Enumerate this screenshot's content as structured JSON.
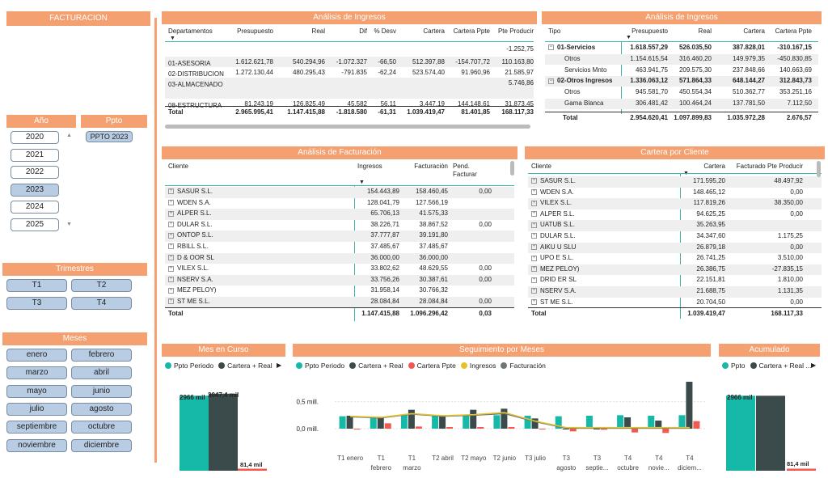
{
  "colors": {
    "accent": "#F4A070",
    "selected": "#b8cce4",
    "teal": "#16b8a8",
    "dark": "#3b4a4a",
    "red": "#f05a50",
    "yellow": "#e6c229",
    "gray": "#6e7676"
  },
  "sidebar": {
    "title": "FACTURACION",
    "year_title": "Año",
    "years": [
      {
        "label": "2020",
        "selected": false
      },
      {
        "label": "2021",
        "selected": false
      },
      {
        "label": "2022",
        "selected": false
      },
      {
        "label": "2023",
        "selected": true
      },
      {
        "label": "2024",
        "selected": false
      },
      {
        "label": "2025",
        "selected": false
      }
    ],
    "ppto_title": "Ppto",
    "ppto_option": "PPTO 2023",
    "trimestres_title": "Trimestres",
    "trimestres": [
      "T1",
      "T2",
      "T3",
      "T4"
    ],
    "meses_title": "Meses",
    "meses": [
      "enero",
      "febrero",
      "marzo",
      "abril",
      "mayo",
      "junio",
      "julio",
      "agosto",
      "septiembre",
      "octubre",
      "noviembre",
      "diciembre"
    ]
  },
  "ingresos_dep": {
    "title": "Análisis de Ingresos",
    "headers": [
      "Departamentos",
      "Presupuesto",
      "Real",
      "Dif",
      "% Desv",
      "Cartera",
      "Cartera Ppte",
      "Pte Producir"
    ],
    "rows": [
      [
        "",
        "",
        "",
        "",
        "",
        "",
        "",
        "-1.252,75"
      ],
      [
        "01-ASESORIA",
        "1.612.621,78",
        "540.294,96",
        "-1.072.327",
        "-66,50",
        "512.397,88",
        "-154.707,72",
        "110.163,80"
      ],
      [
        "02-DISTRIBUCION",
        "1.272.130,44",
        "480.295,43",
        "-791.835",
        "-62,24",
        "523.574,40",
        "91.960,96",
        "21.585,97"
      ],
      [
        "03-ALMACENADO",
        "",
        "",
        "",
        "",
        "",
        "",
        "5.746,86"
      ],
      [
        "08-ESTRUCTURA",
        "81.243,19",
        "126.825,49",
        "45.582",
        "56,11",
        "3.447,19",
        "144.148,61",
        "31.873,45"
      ]
    ],
    "total": [
      "Total",
      "2.965.995,41",
      "1.147.415,88",
      "-1.818.580",
      "-61,31",
      "1.039.419,47",
      "81.401,85",
      "168.117,33"
    ]
  },
  "ingresos_tipo": {
    "title": "Análisis de Ingresos",
    "headers": [
      "Tipo",
      "Presupuesto",
      "Real",
      "Cartera",
      "Cartera Ppte"
    ],
    "rows": [
      {
        "expand": "⊟",
        "label": "01-Servicios",
        "bold": true,
        "values": [
          "1.618.557,29",
          "526.035,50",
          "387.828,01",
          "-310.167,15"
        ]
      },
      {
        "expand": "",
        "label": "Otros",
        "bold": false,
        "values": [
          "1.154.615,54",
          "316.460,20",
          "149.979,35",
          "-450.830,85"
        ]
      },
      {
        "expand": "",
        "label": "Servicios Mnto",
        "bold": false,
        "values": [
          "463.941,75",
          "209.575,30",
          "237.848,66",
          "140.663,69"
        ]
      },
      {
        "expand": "⊟",
        "label": "02-Otros Ingresos",
        "bold": true,
        "values": [
          "1.336.063,12",
          "571.864,33",
          "648.144,27",
          "312.843,73"
        ]
      },
      {
        "expand": "",
        "label": "Otros",
        "bold": false,
        "values": [
          "945.581,70",
          "450.554,34",
          "510.362,77",
          "353.251,16"
        ]
      },
      {
        "expand": "",
        "label": "Gama Blanca",
        "bold": false,
        "values": [
          "306.481,42",
          "100.464,24",
          "137.781,50",
          "7.112,50"
        ]
      }
    ],
    "total": [
      "Total",
      "2.954.620,41",
      "1.097.899,83",
      "1.035.972,28",
      "2.676,57"
    ]
  },
  "facturacion": {
    "title": "Análisis de Facturación",
    "headers": [
      "Cliente",
      "Ingresos",
      "Facturación",
      "Pend. Facturar"
    ],
    "rows": [
      [
        "SASUR S.L.",
        "154.443,89",
        "158.460,45",
        "0,00"
      ],
      [
        "WDEN S.A.",
        "128.041,79",
        "127.566,19",
        ""
      ],
      [
        "ALPER S.L.",
        "65.706,13",
        "41.575,33",
        ""
      ],
      [
        "DULAR S.L.",
        "38.226,71",
        "38.867,52",
        "0,00"
      ],
      [
        "ONTOP S.L.",
        "37.777,87",
        "39.191,80",
        ""
      ],
      [
        "RBILL S.L.",
        "37.485,67",
        "37.485,67",
        ""
      ],
      [
        "D & OOR SL",
        "36.000,00",
        "36.000,00",
        ""
      ],
      [
        "VILEX S.L.",
        "33.802,62",
        "48.629,55",
        "0,00"
      ],
      [
        "NSERV S.A.",
        "33.756,26",
        "30.387,61",
        "0,00"
      ],
      [
        "MEZ PELOY)",
        "31.958,14",
        "30.766,32",
        ""
      ],
      [
        "ST ME S.L.",
        "28.084,84",
        "28.084,84",
        "0,00"
      ]
    ],
    "total": [
      "Total",
      "1.147.415,88",
      "1.096.296,42",
      "0,03"
    ]
  },
  "cartera": {
    "title": "Cartera por Cliente",
    "headers": [
      "Cliente",
      "Cartera",
      "Facturado Pte Producir"
    ],
    "rows": [
      [
        "SASUR S.L.",
        "171.595,20",
        "48.497,92"
      ],
      [
        "WDEN S.A.",
        "148.465,12",
        "0,00"
      ],
      [
        "VILEX S.L.",
        "117.819,26",
        "38.350,00"
      ],
      [
        "ALPER S.L.",
        "94.625,25",
        "0,00"
      ],
      [
        "UATUB S.L.",
        "35.263,95",
        ""
      ],
      [
        "DULAR S.L.",
        "34.347,60",
        "1.175,25"
      ],
      [
        "AIKU U SLU",
        "26.879,18",
        "0,00"
      ],
      [
        "UPO E S.L.",
        "26.741,25",
        "3.510,00"
      ],
      [
        "MEZ PELOY)",
        "26.386,75",
        "-27.835,15"
      ],
      [
        "DRID ER SL",
        "22.151,81",
        "1.810,00"
      ],
      [
        "NSERV S.A.",
        "21.688,75",
        "1.131,35"
      ],
      [
        "ST ME S.L.",
        "20.704,50",
        "0,00"
      ]
    ],
    "total": [
      "Total",
      "1.039.419,47",
      "168.117,33"
    ]
  },
  "mes_curso": {
    "title": "Mes en Curso",
    "legend": [
      {
        "name": "Ppto Periodo",
        "color": "#16b8a8"
      },
      {
        "name": "Cartera + Real",
        "color": "#3b4a4a"
      }
    ],
    "chart_data": {
      "type": "bar",
      "categories": [
        ""
      ],
      "series": [
        {
          "name": "Ppto Periodo",
          "values": [
            2966
          ]
        },
        {
          "name": "Cartera + Real",
          "values": [
            3047.4
          ]
        },
        {
          "name": "Cartera Ppte",
          "values": [
            81.4
          ]
        }
      ],
      "data_labels": [
        "2966 mil",
        "3047,4 mil",
        "81,4 mil"
      ]
    }
  },
  "seguimiento": {
    "title": "Seguimiento por Meses",
    "legend": [
      {
        "name": "Ppto Periodo",
        "color": "#16b8a8"
      },
      {
        "name": "Cartera + Real",
        "color": "#3b4a4a"
      },
      {
        "name": "Cartera Ppte",
        "color": "#f05a50"
      },
      {
        "name": "Ingresos",
        "color": "#e6c229"
      },
      {
        "name": "Facturación",
        "color": "#6e7676"
      }
    ],
    "y_ticks": [
      "0,5 mill.",
      "0,0 mill."
    ],
    "chart_data": {
      "type": "bar",
      "categories": [
        "T1 enero",
        "T1 febrero",
        "T1 marzo",
        "T2 abril",
        "T2 mayo",
        "T2 junio",
        "T3 julio",
        "T3 agosto",
        "T3 septie...",
        "T4 octubre",
        "T4 novie...",
        "T4 diciem..."
      ],
      "ylim": [
        -0.15,
        0.9
      ],
      "series": [
        {
          "name": "Ppto Periodo",
          "values": [
            0.23,
            0.2,
            0.26,
            0.25,
            0.24,
            0.25,
            0.24,
            0.23,
            0.24,
            0.25,
            0.24,
            0.25
          ]
        },
        {
          "name": "Cartera + Real",
          "values": [
            0.24,
            0.22,
            0.35,
            0.25,
            0.35,
            0.37,
            0.19,
            0.0,
            0.0,
            0.21,
            0.15,
            0.87
          ]
        },
        {
          "name": "Cartera Ppte",
          "values": [
            0.0,
            0.1,
            0.04,
            0.03,
            0.03,
            0.03,
            0.0,
            -0.05,
            -0.02,
            -0.07,
            -0.08,
            0.14
          ]
        },
        {
          "name": "Ingresos",
          "values": [
            0.23,
            0.21,
            0.28,
            0.24,
            0.26,
            0.3,
            0.14,
            0.02,
            0.02,
            0.02,
            0.02,
            0.02
          ]
        },
        {
          "name": "Facturación",
          "values": [
            0.22,
            0.2,
            0.27,
            0.23,
            0.25,
            0.28,
            0.13,
            0.01,
            0.01,
            0.01,
            0.01,
            0.01
          ]
        }
      ]
    }
  },
  "acumulado": {
    "title": "Acumulado",
    "legend": [
      {
        "name": "Ppto",
        "color": "#16b8a8"
      },
      {
        "name": "Cartera + Real ...",
        "color": "#3b4a4a"
      }
    ],
    "chart_data": {
      "type": "bar",
      "categories": [
        ""
      ],
      "series": [
        {
          "name": "Ppto",
          "values": [
            2966
          ]
        },
        {
          "name": "Cartera + Real",
          "values": [
            2966
          ]
        },
        {
          "name": "Cartera Ppte",
          "values": [
            81.4
          ]
        }
      ],
      "data_labels": [
        "2966 mil",
        "81,4 mil"
      ]
    }
  }
}
